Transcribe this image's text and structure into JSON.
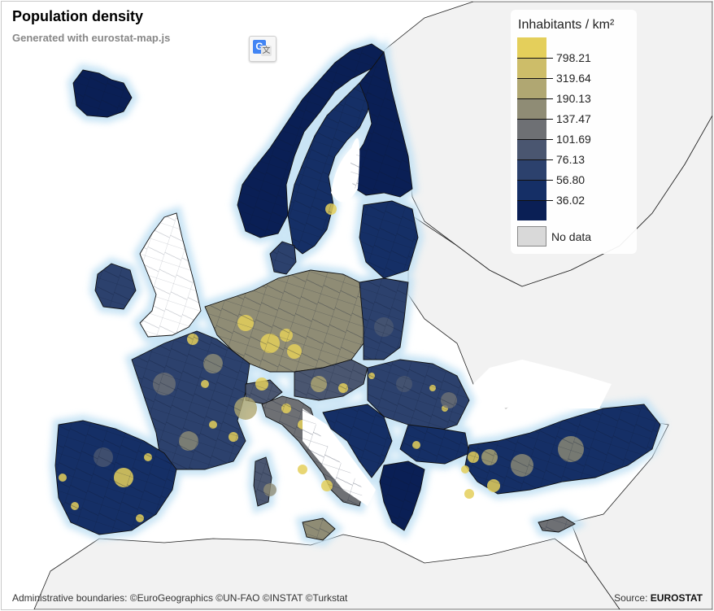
{
  "map": {
    "title": "Population density",
    "subtitle": "Generated with eurostat-map.js",
    "colors": {
      "sea": "#ffffff",
      "land_outside": "#f2f2f2",
      "no_data": "#ffffff",
      "boundary": "#111111",
      "coast_glow": "#c4e2f4"
    }
  },
  "translate_button": {
    "icon": "google-translate-icon"
  },
  "legend": {
    "title": "Inhabitants / km²",
    "classes": [
      {
        "color": "#e4cf5b"
      },
      {
        "color": "#cdbd69"
      },
      {
        "color": "#b0a772"
      },
      {
        "color": "#8f8c75"
      },
      {
        "color": "#6e7074"
      },
      {
        "color": "#4a5670"
      },
      {
        "color": "#2c416d"
      },
      {
        "color": "#152f66"
      },
      {
        "color": "#0a1f55"
      }
    ],
    "thresholds": [
      "798.21",
      "319.64",
      "190.13",
      "137.47",
      "101.69",
      "76.13",
      "56.80",
      "36.02"
    ],
    "no_data_label": "No data",
    "no_data_color": "#d9d9d9"
  },
  "footer": {
    "attribution": "Administrative boundaries: ©EuroGeographics ©UN-FAO ©INSTAT ©Turkstat",
    "source_prefix": "Source:",
    "source_name": "EUROSTAT"
  }
}
